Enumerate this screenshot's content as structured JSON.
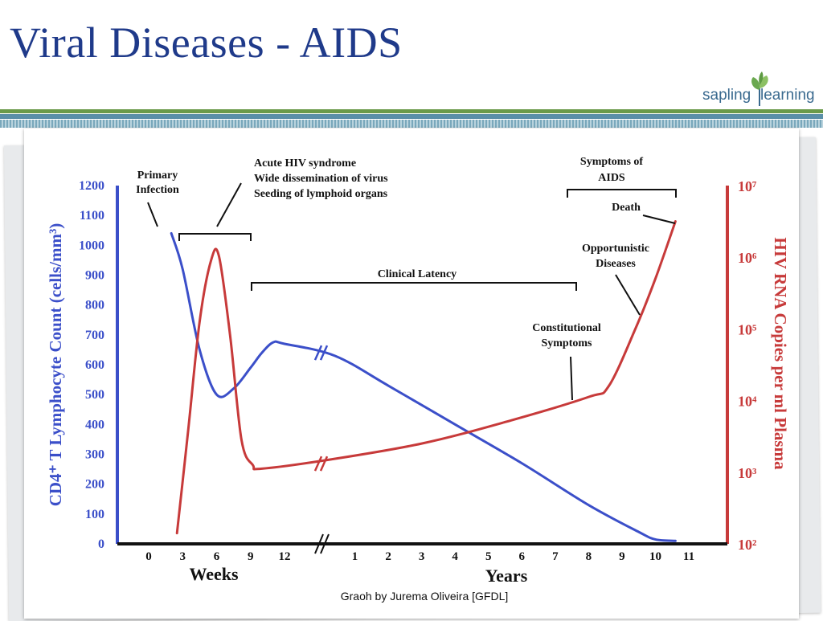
{
  "slide": {
    "title": "Viral Diseases - AIDS",
    "logo_left": "sapling",
    "logo_right": "learning",
    "caption": "Graoh by Jurema Oliveira [GFDL]"
  },
  "colors": {
    "title": "#1f3a8a",
    "cd4": "#3b4fc9",
    "rna": "#c73a3a",
    "logo_green": "#6aa84f",
    "logo_blue": "#3a6a8f"
  },
  "chart_data": {
    "type": "line",
    "x_axis": {
      "weeks_label": "Weeks",
      "weeks_ticks": [
        "0",
        "3",
        "6",
        "9",
        "12"
      ],
      "years_label": "Years",
      "years_ticks": [
        "1",
        "2",
        "3",
        "4",
        "5",
        "6",
        "7",
        "8",
        "9",
        "10",
        "11"
      ]
    },
    "y_left": {
      "label": "CD4⁺ T Lymphocyte Count (cells/mm³)",
      "ticks": [
        "1200",
        "1100",
        "1000",
        "900",
        "800",
        "700",
        "600",
        "500",
        "400",
        "300",
        "200",
        "100",
        "0"
      ],
      "ylim": [
        0,
        1200
      ]
    },
    "y_right": {
      "label": "HIV RNA Copies per ml Plasma",
      "ticks": [
        "10⁷",
        "10⁶",
        "10⁵",
        "10⁴",
        "10³",
        "10²"
      ],
      "scale": "log",
      "ylim_exponent": [
        2,
        7
      ]
    },
    "series": [
      {
        "key": "cd4",
        "color": "#3b4fc9",
        "points": [
          [
            "w",
            2,
            1040
          ],
          [
            "w",
            3,
            920
          ],
          [
            "w",
            4.5,
            650
          ],
          [
            "w",
            6,
            500
          ],
          [
            "w",
            7.5,
            520
          ],
          [
            "w",
            9,
            590
          ],
          [
            "w",
            10,
            640
          ],
          [
            "w",
            11,
            675
          ],
          [
            "w",
            12,
            670
          ],
          [
            "y",
            0.4,
            630
          ],
          [
            "y",
            2,
            530
          ],
          [
            "y",
            4,
            400
          ],
          [
            "y",
            6,
            270
          ],
          [
            "y",
            8,
            130
          ],
          [
            "y",
            9.5,
            40
          ],
          [
            "y",
            10,
            15
          ],
          [
            "y",
            10.6,
            10
          ]
        ]
      },
      {
        "key": "rna",
        "color": "#c73a3a",
        "points": [
          [
            "w",
            2.5,
            2.15
          ],
          [
            "w",
            3.5,
            3.6
          ],
          [
            "w",
            4.5,
            5.1
          ],
          [
            "w",
            5.5,
            5.95
          ],
          [
            "w",
            6.2,
            6.02
          ],
          [
            "w",
            7.2,
            4.9
          ],
          [
            "w",
            8.2,
            3.45
          ],
          [
            "w",
            9.2,
            3.1
          ],
          [
            "w",
            10,
            3.05
          ],
          [
            "y",
            0.3,
            3.18
          ],
          [
            "y",
            3,
            3.4
          ],
          [
            "y",
            5.5,
            3.7
          ],
          [
            "y",
            8,
            4.05
          ],
          [
            "y",
            8.6,
            4.2
          ],
          [
            "y",
            9.4,
            5.0
          ],
          [
            "y",
            10,
            5.7
          ],
          [
            "y",
            10.6,
            6.5
          ]
        ]
      }
    ],
    "annotations": {
      "primary_infection": [
        "Primary",
        "Infection"
      ],
      "acute": [
        "Acute HIV syndrome",
        "Wide dissemination of virus",
        "Seeding of lymphoid organs"
      ],
      "clinical_latency": "Clinical Latency",
      "symptoms_aids": [
        "Symptoms of",
        "AIDS"
      ],
      "death": "Death",
      "opportunistic": [
        "Opportunistic",
        "Diseases"
      ],
      "constitutional": [
        "Constitutional",
        "Symptoms"
      ]
    },
    "grid": false,
    "legend": "none"
  }
}
